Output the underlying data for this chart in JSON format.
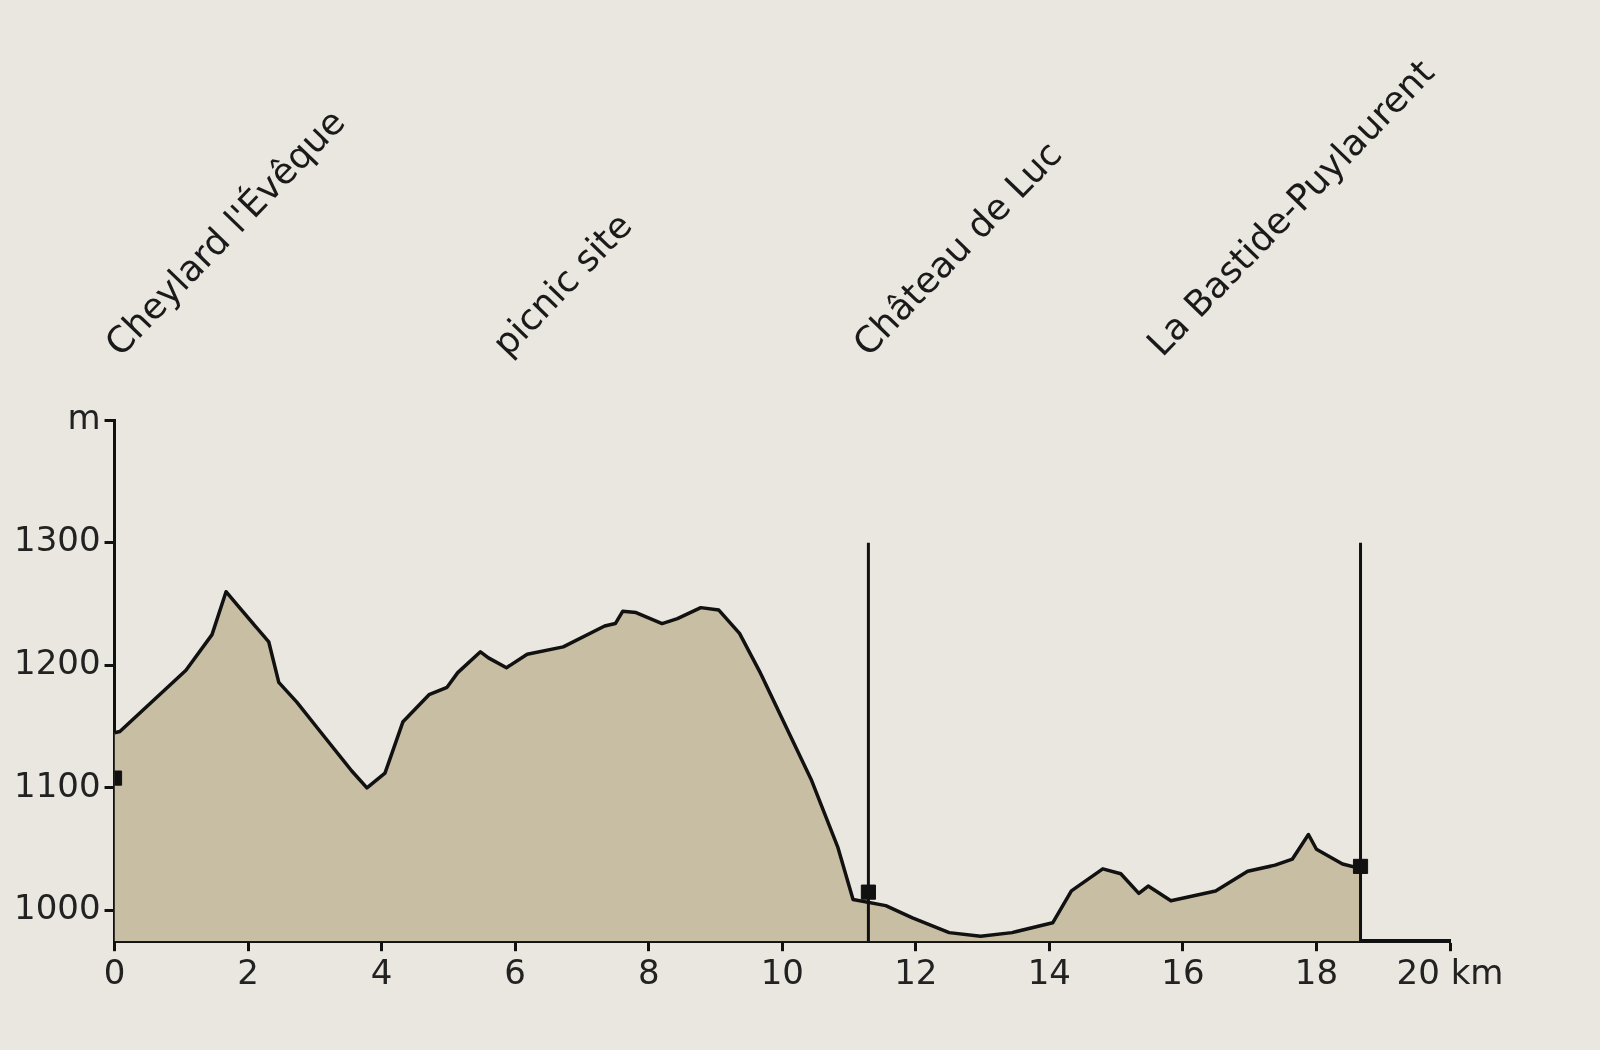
{
  "chart_data": {
    "type": "area",
    "xlim": [
      0,
      20
    ],
    "xticks": [
      0,
      2,
      4,
      6,
      8,
      10,
      12,
      14,
      16,
      18,
      {
        "value": 20,
        "label": "20 km"
      }
    ],
    "ylim": [
      975,
      1400
    ],
    "yticks": [
      1000,
      1100,
      1200,
      1300,
      {
        "value": 1400,
        "label": "m"
      }
    ],
    "grid": false,
    "legend": false,
    "series": [
      {
        "color": "#c8bea3",
        "x": [
          0,
          0.08,
          1.07,
          1.46,
          1.67,
          1.84,
          2.31,
          2.46,
          2.73,
          3.08,
          3.55,
          3.78,
          4.05,
          4.32,
          4.71,
          4.98,
          5.14,
          5.48,
          5.6,
          5.87,
          6.18,
          6.72,
          7.34,
          7.5,
          7.61,
          7.81,
          8.2,
          8.43,
          8.78,
          9.05,
          9.36,
          9.67,
          10.44,
          10.83,
          11.06,
          11.55,
          11.95,
          12.5,
          12.97,
          13.44,
          14.05,
          14.33,
          14.8,
          15.07,
          15.34,
          15.48,
          15.82,
          16.49,
          16.97,
          17.38,
          17.64,
          17.88,
          18,
          18.39,
          18.68
        ],
        "values": [
          1145,
          1146,
          1196,
          1225,
          1260,
          1249,
          1219,
          1186,
          1170,
          1146,
          1114,
          1100,
          1112,
          1154,
          1176,
          1182,
          1194,
          1211,
          1206,
          1198,
          1209,
          1215,
          1232,
          1234,
          1244,
          1243,
          1234,
          1238,
          1247,
          1245,
          1226,
          1194,
          1106,
          1052,
          1009,
          1004,
          994,
          982,
          979,
          982,
          990,
          1016,
          1034,
          1030,
          1014,
          1020,
          1008,
          1016,
          1032,
          1037,
          1042,
          1062,
          1050,
          1038,
          1034
        ]
      },
      {
        "type": "scatter",
        "color": "#111111",
        "marker": "square",
        "x": [
          0,
          11.29,
          18.66
        ],
        "values": [
          1108,
          1015,
          1036
        ]
      }
    ],
    "ref_lines": [
      {
        "axis": "x",
        "value": 11.29,
        "color": "#111111"
      },
      {
        "axis": "x",
        "value": 18.66,
        "color": "#111111"
      }
    ],
    "annotations": [
      "Cheylard l'Évêque",
      "picnic site",
      "Château de Luc",
      "La Bastide-Puylaurent"
    ]
  }
}
